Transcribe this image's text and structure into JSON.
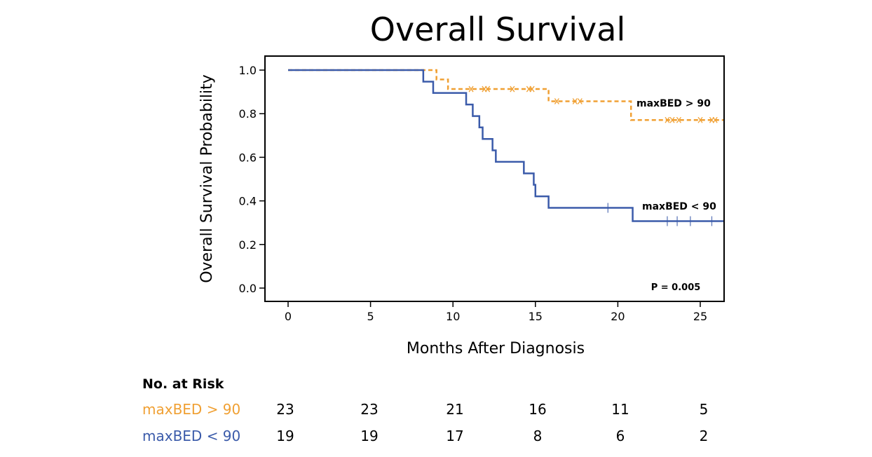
{
  "chart_data": {
    "type": "line",
    "subtype": "kaplan-meier step",
    "title": "Overall Survival",
    "xlabel": "Months After Diagnosis",
    "ylabel": "Overall Survival Probability",
    "xlim": [
      -1.4,
      26.4
    ],
    "ylim": [
      -0.05,
      1.06
    ],
    "xticks": [
      0,
      5,
      10,
      15,
      20,
      25
    ],
    "yticks": [
      "0.0",
      "0.2",
      "0.4",
      "0.6",
      "0.8",
      "1.0"
    ],
    "grid": false,
    "annotation": "P = 0.005",
    "series": [
      {
        "name": "maxBED > 90",
        "color": "#F0A033",
        "style": "dashed",
        "steps": [
          [
            0,
            1.0
          ],
          [
            9.0,
            0.957
          ],
          [
            9.7,
            0.913
          ],
          [
            15.8,
            0.857
          ],
          [
            20.8,
            0.771
          ]
        ],
        "end": 26.4,
        "censored": [
          11.1,
          11.9,
          12.1,
          13.6,
          14.6,
          14.8,
          16.3,
          17.4,
          17.7,
          23.0,
          23.3,
          23.7,
          25.0,
          25.7,
          25.9
        ],
        "label": "maxBED > 90"
      },
      {
        "name": "maxBED < 90",
        "color": "#3B5BAA",
        "style": "solid",
        "steps": [
          [
            0,
            1.0
          ],
          [
            8.2,
            0.947
          ],
          [
            8.8,
            0.895
          ],
          [
            10.8,
            0.842
          ],
          [
            11.2,
            0.789
          ],
          [
            11.6,
            0.737
          ],
          [
            11.8,
            0.684
          ],
          [
            12.4,
            0.632
          ],
          [
            12.6,
            0.579
          ],
          [
            14.3,
            0.526
          ],
          [
            14.9,
            0.474
          ],
          [
            15.0,
            0.421
          ],
          [
            15.8,
            0.368
          ],
          [
            20.9,
            0.307
          ]
        ],
        "end": 26.4,
        "censored": [
          19.4,
          23.0,
          23.6,
          24.4,
          25.7
        ],
        "label": "maxBED < 90"
      }
    ],
    "risk_table": {
      "title": "No. at Risk",
      "rows": [
        {
          "label": "maxBED > 90",
          "color": "#F0A033",
          "values": [
            23,
            23,
            21,
            16,
            11,
            5
          ]
        },
        {
          "label": "maxBED < 90",
          "color": "#3B5BAA",
          "values": [
            19,
            19,
            17,
            8,
            6,
            2
          ]
        }
      ]
    }
  }
}
